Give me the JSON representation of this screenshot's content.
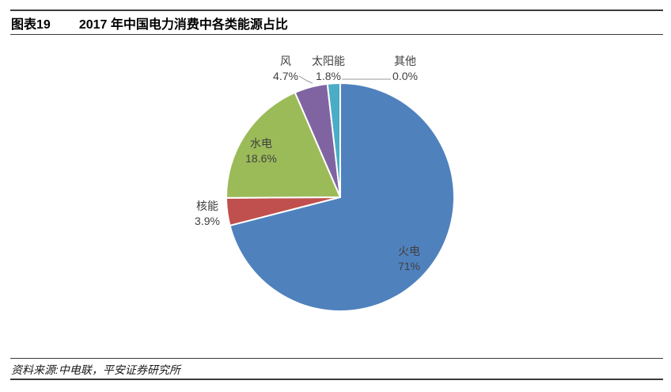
{
  "header": {
    "figure_label": "图表19",
    "title": "2017 年中国电力消费中各类能源占比"
  },
  "chart_data": {
    "type": "pie",
    "title": "2017 年中国电力消费中各类能源占比",
    "start_angle_deg": 0,
    "direction": "clockwise",
    "total": 100,
    "series": [
      {
        "key": "thermal",
        "name": "火电",
        "value": 71.0,
        "label": "71%",
        "color": "#4F81BD",
        "label_position": "inside"
      },
      {
        "key": "nuclear",
        "name": "核能",
        "value": 3.9,
        "label": "3.9%",
        "color": "#C0504D",
        "label_position": "outside"
      },
      {
        "key": "hydro",
        "name": "水电",
        "value": 18.6,
        "label": "18.6%",
        "color": "#9BBB59",
        "label_position": "inside"
      },
      {
        "key": "wind",
        "name": "风",
        "value": 4.7,
        "label": "4.7%",
        "color": "#8064A2",
        "label_position": "outside"
      },
      {
        "key": "solar",
        "name": "太阳能",
        "value": 1.8,
        "label": "1.8%",
        "color": "#4BACC6",
        "label_position": "outside"
      },
      {
        "key": "other",
        "name": "其他",
        "value": 0.0,
        "label": "0.0%",
        "color": "#A6A6A6",
        "label_position": "outside"
      }
    ],
    "slice_border_color": "#ffffff",
    "label_text_color": "#404040",
    "leader_line_color": "#999999",
    "legend": "none",
    "grid": false
  },
  "footer": {
    "source": "资料来源:中电联，平安证券研究所"
  }
}
